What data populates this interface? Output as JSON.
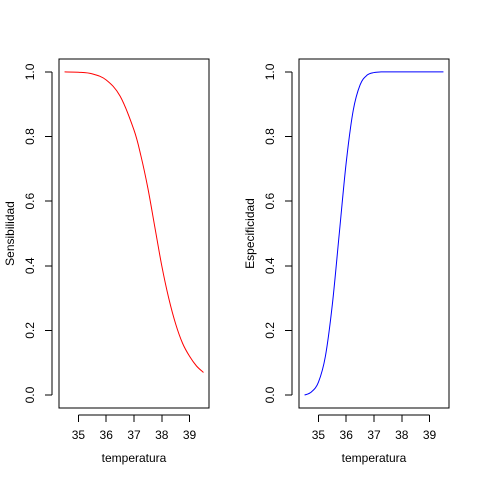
{
  "chart_data": [
    {
      "type": "line",
      "title": "",
      "xlabel": "temperatura",
      "ylabel": "Sensibilidad",
      "xlim": [
        34.3,
        39.7
      ],
      "ylim": [
        -0.04,
        1.04
      ],
      "xticks": [
        35,
        36,
        37,
        38,
        39
      ],
      "xtick_labels": [
        "35",
        "36",
        "37",
        "38",
        "39"
      ],
      "yticks": [
        0.0,
        0.2,
        0.4,
        0.6,
        0.8,
        1.0
      ],
      "ytick_labels": [
        "0.0",
        "0.2",
        "0.4",
        "0.6",
        "0.8",
        "1.0"
      ],
      "grid": false,
      "series": [
        {
          "color": "#ff0000",
          "x": [
            34.5,
            35.0,
            35.5,
            36.0,
            36.5,
            37.0,
            37.25,
            37.5,
            37.75,
            38.0,
            38.25,
            38.5,
            38.75,
            39.0,
            39.25,
            39.5
          ],
          "y": [
            1.0,
            0.999,
            0.994,
            0.975,
            0.925,
            0.82,
            0.74,
            0.64,
            0.52,
            0.4,
            0.3,
            0.22,
            0.16,
            0.12,
            0.09,
            0.07
          ]
        }
      ]
    },
    {
      "type": "line",
      "title": "",
      "xlabel": "temperatura",
      "ylabel": "Especificidad",
      "xlim": [
        34.3,
        39.7
      ],
      "ylim": [
        -0.04,
        1.04
      ],
      "xticks": [
        35,
        36,
        37,
        38,
        39
      ],
      "xtick_labels": [
        "35",
        "36",
        "37",
        "38",
        "39"
      ],
      "yticks": [
        0.0,
        0.2,
        0.4,
        0.6,
        0.8,
        1.0
      ],
      "ytick_labels": [
        "0.0",
        "0.2",
        "0.4",
        "0.6",
        "0.8",
        "1.0"
      ],
      "grid": false,
      "series": [
        {
          "color": "#0000ff",
          "x": [
            34.5,
            34.75,
            35.0,
            35.25,
            35.5,
            35.75,
            36.0,
            36.25,
            36.5,
            36.75,
            37.0,
            37.25,
            37.5,
            38.0,
            38.5,
            39.0,
            39.5
          ],
          "y": [
            0.0,
            0.01,
            0.04,
            0.12,
            0.28,
            0.5,
            0.72,
            0.88,
            0.96,
            0.99,
            0.998,
            1.0,
            1.0,
            1.0,
            1.0,
            1.0,
            1.0
          ]
        }
      ]
    }
  ]
}
